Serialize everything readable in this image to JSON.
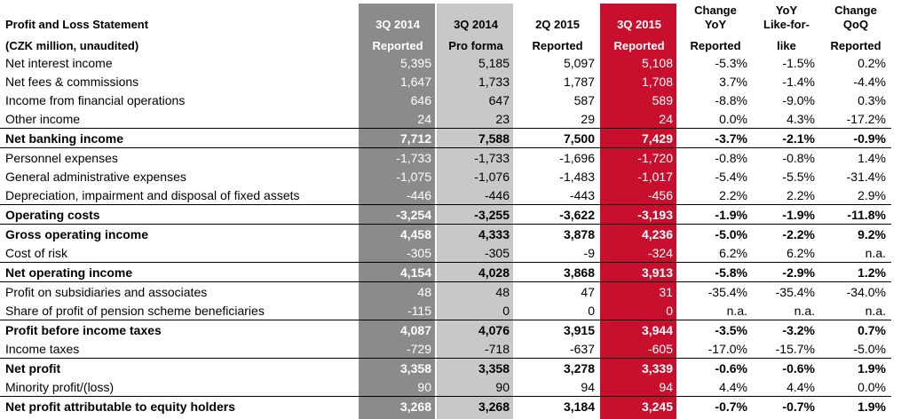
{
  "title": "Profit and Loss Statement",
  "subtitle": "(CZK million, unaudited)",
  "columns": [
    {
      "line1": "3Q 2014",
      "line2": "Reported"
    },
    {
      "line1": "3Q 2014",
      "line2": "Pro forma"
    },
    {
      "line1": "2Q 2015",
      "line2": "Reported"
    },
    {
      "line1": "3Q 2015",
      "line2": "Reported"
    },
    {
      "line1": "Change",
      "line2": "YoY",
      "line3": "Reported"
    },
    {
      "line1": "YoY",
      "line2": "Like-for-",
      "line3": "like"
    },
    {
      "line1": "Change",
      "line2": "QoQ",
      "line3": "Reported"
    }
  ],
  "colors": {
    "dark_grey_column": "#8b8b8b",
    "light_grey_column": "#c8c8c8",
    "highlight_column": "#c8102e"
  },
  "rows": [
    {
      "label": "Net interest income",
      "values": [
        "5,395",
        "5,185",
        "5,097",
        "5,108",
        "-5.3%",
        "-1.5%",
        "0.2%"
      ]
    },
    {
      "label": "Net fees & commissions",
      "values": [
        "1,647",
        "1,733",
        "1,787",
        "1,708",
        "3.7%",
        "-1.4%",
        "-4.4%"
      ]
    },
    {
      "label": "Income from financial operations",
      "values": [
        "646",
        "647",
        "587",
        "589",
        "-8.8%",
        "-9.0%",
        "0.3%"
      ]
    },
    {
      "label": "Other income",
      "values": [
        "24",
        "23",
        "29",
        "24",
        "0.0%",
        "4.3%",
        "-17.2%"
      ]
    },
    {
      "label": "Net banking income",
      "values": [
        "7,712",
        "7,588",
        "7,500",
        "7,429",
        "-3.7%",
        "-2.1%",
        "-0.9%"
      ]
    },
    {
      "label": "Personnel expenses",
      "values": [
        "-1,733",
        "-1,733",
        "-1,696",
        "-1,720",
        "-0.8%",
        "-0.8%",
        "1.4%"
      ]
    },
    {
      "label": "General administrative expenses",
      "values": [
        "-1,075",
        "-1,076",
        "-1,483",
        "-1,017",
        "-5.4%",
        "-5.5%",
        "-31.4%"
      ]
    },
    {
      "label": "Depreciation, impairment and disposal of fixed assets",
      "values": [
        "-446",
        "-446",
        "-443",
        "-456",
        "2.2%",
        "2.2%",
        "2.9%"
      ]
    },
    {
      "label": "Operating costs",
      "values": [
        "-3,254",
        "-3,255",
        "-3,622",
        "-3,193",
        "-1.9%",
        "-1.9%",
        "-11.8%"
      ]
    },
    {
      "label": "Gross operating income",
      "values": [
        "4,458",
        "4,333",
        "3,878",
        "4,236",
        "-5.0%",
        "-2.2%",
        "9.2%"
      ]
    },
    {
      "label": "Cost of risk",
      "values": [
        "-305",
        "-305",
        "-9",
        "-324",
        "6.2%",
        "6.2%",
        "n.a."
      ]
    },
    {
      "label": "Net operating income",
      "values": [
        "4,154",
        "4,028",
        "3,868",
        "3,913",
        "-5.8%",
        "-2.9%",
        "1.2%"
      ]
    },
    {
      "label": "Profit on subsidiaries and associates",
      "values": [
        "48",
        "48",
        "47",
        "31",
        "-35.4%",
        "-35.4%",
        "-34.0%"
      ]
    },
    {
      "label": "Share of profit of pension scheme beneficiaries",
      "values": [
        "-115",
        "0",
        "0",
        "0",
        "n.a.",
        "n.a.",
        "n.a."
      ]
    },
    {
      "label": "Profit before income taxes",
      "values": [
        "4,087",
        "4,076",
        "3,915",
        "3,944",
        "-3.5%",
        "-3.2%",
        "0.7%"
      ]
    },
    {
      "label": "Income taxes",
      "values": [
        "-729",
        "-718",
        "-637",
        "-605",
        "-17.0%",
        "-15.7%",
        "-5.0%"
      ]
    },
    {
      "label": "Net profit",
      "values": [
        "3,358",
        "3,358",
        "3,278",
        "3,339",
        "-0.6%",
        "-0.6%",
        "1.9%"
      ]
    },
    {
      "label": "Minority profit/(loss)",
      "values": [
        "90",
        "90",
        "94",
        "94",
        "4.4%",
        "4.4%",
        "0.0%"
      ]
    },
    {
      "label": "Net profit attributable to equity holders",
      "values": [
        "3,268",
        "3,268",
        "3,184",
        "3,245",
        "-0.7%",
        "-0.7%",
        "1.9%"
      ]
    }
  ]
}
